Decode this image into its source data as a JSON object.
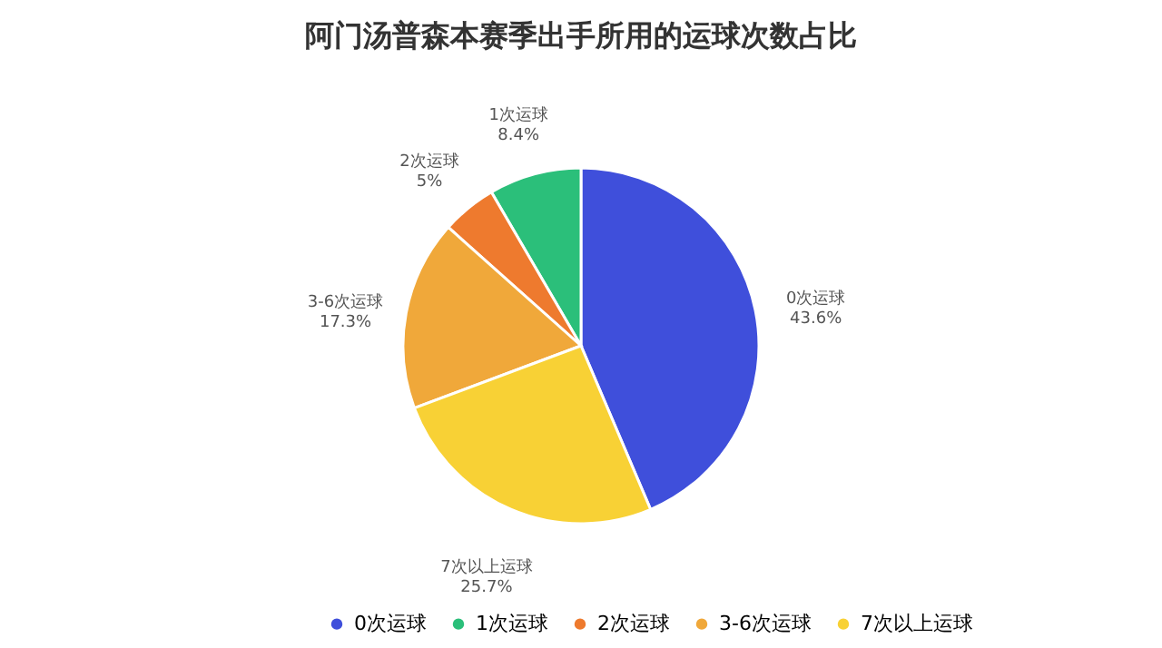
{
  "chart_data": {
    "type": "pie",
    "title": "阿门汤普森本赛季出手所用的运球次数占比",
    "categories": [
      "0次运球",
      "1次运球",
      "2次运球",
      "3-6次运球",
      "7次以上运球"
    ],
    "values": [
      43.6,
      8.4,
      5,
      17.3,
      25.7
    ],
    "value_labels": [
      "43.6%",
      "8.4%",
      "5%",
      "17.3%",
      "25.7%"
    ],
    "colors": [
      "#3f4fdb",
      "#2bbf7a",
      "#ee7a2e",
      "#f0a83a",
      "#f8d135"
    ],
    "legend": "bottom"
  }
}
